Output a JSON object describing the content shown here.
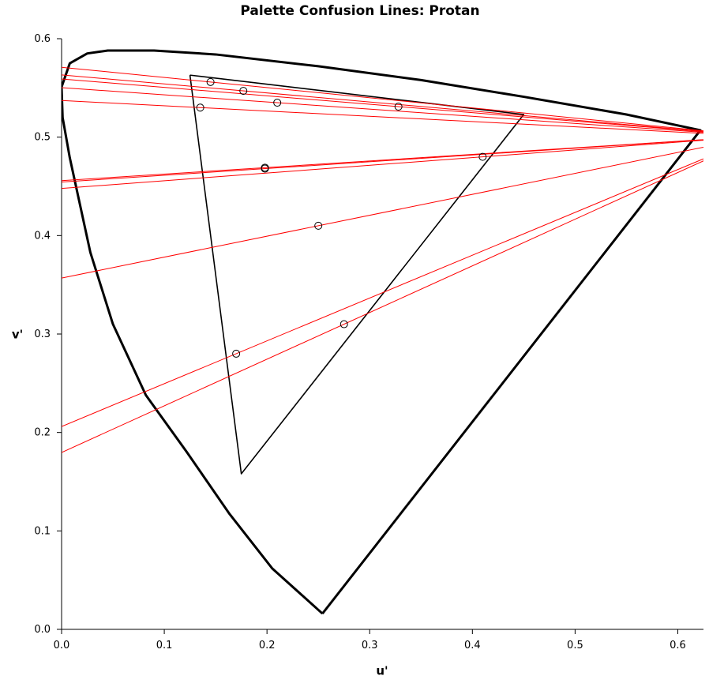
{
  "chart_data": {
    "type": "scatter",
    "title": "Palette Confusion Lines: Protan",
    "x_label": "u'",
    "y_label": "v'",
    "x": [
      0.145,
      0.177,
      0.21,
      0.135,
      0.328,
      0.198,
      0.198,
      0.41,
      0.25,
      0.275,
      0.17
    ],
    "values": [
      0.556,
      0.547,
      0.535,
      0.53,
      0.531,
      0.469,
      0.468,
      0.48,
      0.41,
      0.31,
      0.28
    ],
    "copunctal_point": {
      "u": 0.678,
      "v": 0.501
    },
    "line_color": "#ff0000",
    "locus_u": [
      0.254,
      0.205,
      0.163,
      0.122,
      0.082,
      0.05,
      0.028,
      0.008,
      0.001,
      0.0,
      0.008,
      0.025,
      0.045,
      0.09,
      0.15,
      0.25,
      0.35,
      0.45,
      0.55,
      0.622,
      0.254
    ],
    "locus_v": [
      0.016,
      0.062,
      0.118,
      0.18,
      0.238,
      0.31,
      0.383,
      0.479,
      0.52,
      0.551,
      0.575,
      0.585,
      0.588,
      0.588,
      0.584,
      0.572,
      0.558,
      0.541,
      0.523,
      0.507,
      0.016
    ],
    "gamut_u": [
      0.125,
      0.45,
      0.175,
      0.125
    ],
    "gamut_v": [
      0.563,
      0.523,
      0.158,
      0.563
    ],
    "xlim": [
      0,
      0.625
    ],
    "ylim": [
      0,
      0.6
    ],
    "xticks": [
      {
        "value": 0,
        "label": "0.0"
      },
      0.1,
      0.2,
      0.3,
      0.4,
      0.5,
      0.6
    ],
    "yticks": [
      {
        "value": 0,
        "label": "0.0"
      },
      0.1,
      0.2,
      0.3,
      0.4,
      0.5,
      0.6
    ]
  }
}
